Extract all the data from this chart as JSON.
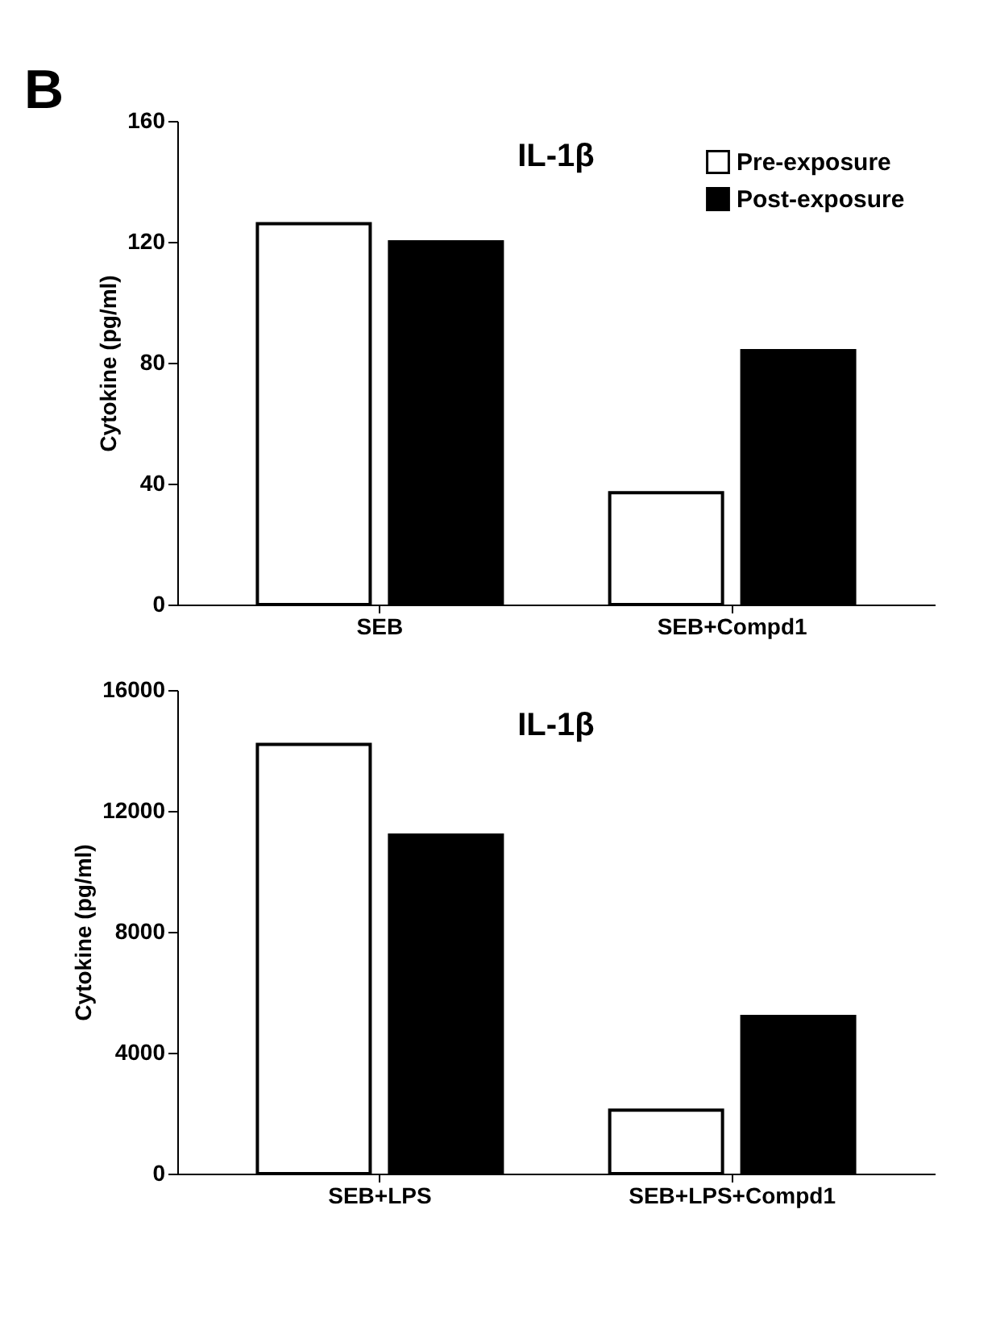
{
  "chart_data": [
    {
      "type": "bar",
      "title": "IL-1β",
      "annotations": [
        "B"
      ],
      "ylabel": "Cytokine (pg/ml)",
      "categories": [
        "SEB",
        "SEB+Compd1"
      ],
      "ylim": [
        0,
        160
      ],
      "yticks": [
        0,
        40,
        80,
        120,
        160
      ],
      "legend": "top right",
      "grid": false,
      "series": [
        {
          "name": "Pre-exposure",
          "color": "#ffffff",
          "values": [
            126,
            37
          ]
        },
        {
          "name": "Post-exposure",
          "color": "#000000",
          "values": [
            120,
            84
          ]
        }
      ]
    },
    {
      "type": "bar",
      "title": "IL-1β",
      "ylabel": "Cytokine (pg/ml)",
      "categories": [
        "SEB+LPS",
        "SEB+LPS+Compd1"
      ],
      "ylim": [
        0,
        16000
      ],
      "yticks": [
        0,
        4000,
        8000,
        12000,
        16000
      ],
      "legend": "top right",
      "grid": false,
      "series": [
        {
          "name": "Pre-exposure",
          "color": "#ffffff",
          "values": [
            14200,
            2100
          ]
        },
        {
          "name": "Post-exposure",
          "color": "#000000",
          "values": [
            11200,
            5200
          ]
        }
      ]
    }
  ]
}
